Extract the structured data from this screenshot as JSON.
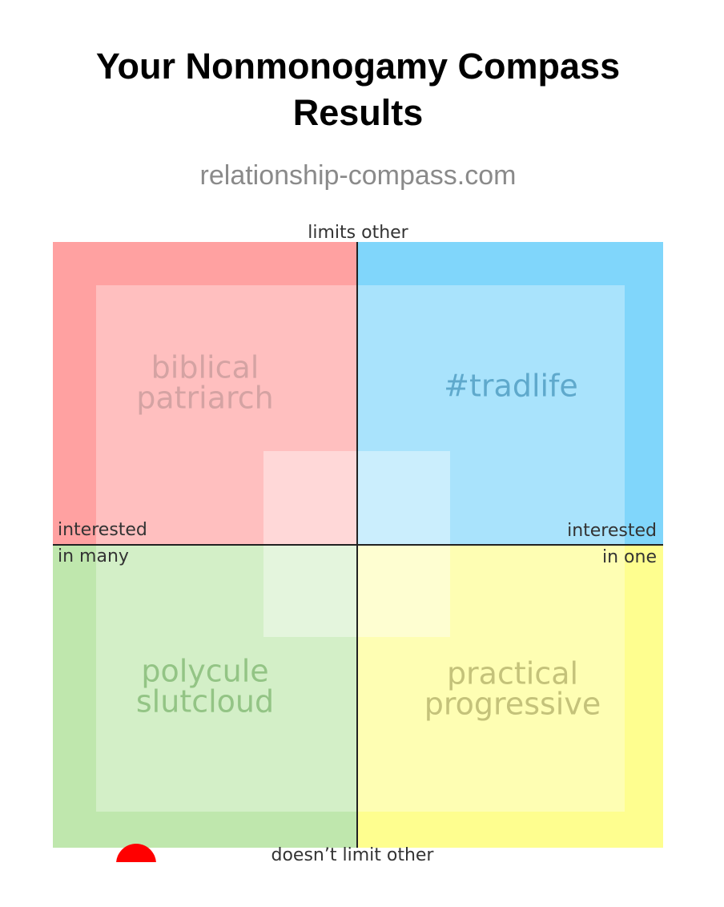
{
  "header": {
    "title_lines": [
      "Your Nonmonogamy Compass",
      "Results"
    ],
    "subtitle": "relationship-compass.com"
  },
  "compass": {
    "axis_top": "limits other",
    "axis_bottom": "doesn’t limit other",
    "axis_left": [
      "interested",
      "in many"
    ],
    "axis_right": [
      "interested",
      "in one"
    ],
    "quadrants": [
      {
        "lines": [
          "biblical",
          "patriarch"
        ]
      },
      {
        "lines": [
          "#tradlife"
        ]
      },
      {
        "lines": [
          "polycule",
          "slutcloud"
        ]
      },
      {
        "lines": [
          "practical",
          "progressive"
        ]
      }
    ]
  }
}
